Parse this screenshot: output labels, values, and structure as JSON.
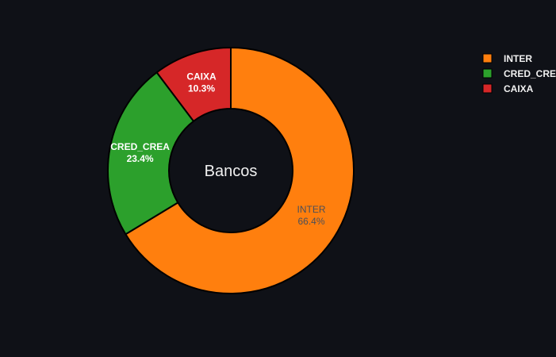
{
  "chart_data": {
    "type": "pie",
    "hole": true,
    "center_title": "Bancos",
    "slices": [
      {
        "label": "INTER",
        "value": 66.4,
        "percent_text": "66.4%",
        "color": "#ff7f0e"
      },
      {
        "label": "CRED_CREA",
        "value": 23.4,
        "percent_text": "23.4%",
        "color": "#2ca02c"
      },
      {
        "label": "CAIXA",
        "value": 10.3,
        "percent_text": "10.3%",
        "color": "#d62728"
      }
    ],
    "legend": {
      "placement": "top-right",
      "items": [
        "INTER",
        "CRED_CREA",
        "CAIXA"
      ]
    }
  },
  "background_color": "#0f1117"
}
